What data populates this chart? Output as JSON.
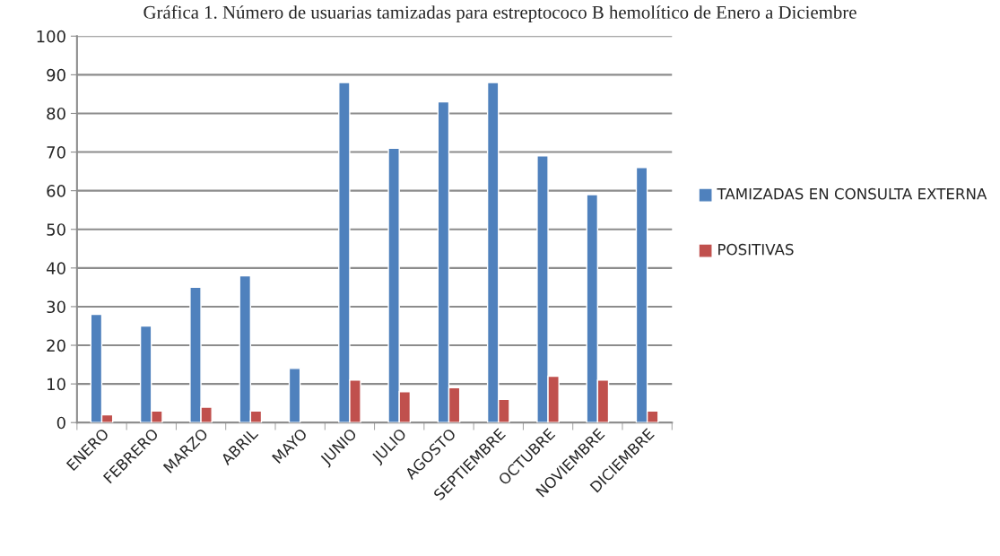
{
  "chart_data": {
    "type": "bar",
    "title": "Gráfica 1. Número de usuarias tamizadas para estreptococo B hemolítico de Enero a Diciembre",
    "categories": [
      "ENERO",
      "FEBRERO",
      "MARZO",
      "ABRIL",
      "MAYO",
      "JUNIO",
      "JULIO",
      "AGOSTO",
      "SEPTIEMBRE",
      "OCTUBRE",
      "NOVIEMBRE",
      "DICIEMBRE"
    ],
    "series": [
      {
        "name": "TAMIZADAS EN CONSULTA EXTERNA",
        "color": "#4f81bd",
        "values": [
          28,
          25,
          35,
          38,
          14,
          88,
          71,
          83,
          88,
          69,
          59,
          66
        ]
      },
      {
        "name": "POSITIVAS",
        "color": "#c0504d",
        "values": [
          2,
          3,
          4,
          3,
          null,
          11,
          8,
          9,
          6,
          12,
          11,
          3
        ]
      }
    ],
    "ylim": [
      0,
      100
    ],
    "yticks": [
      0,
      10,
      20,
      30,
      40,
      50,
      60,
      70,
      80,
      90,
      100
    ],
    "grid": "y",
    "legend": "right"
  }
}
